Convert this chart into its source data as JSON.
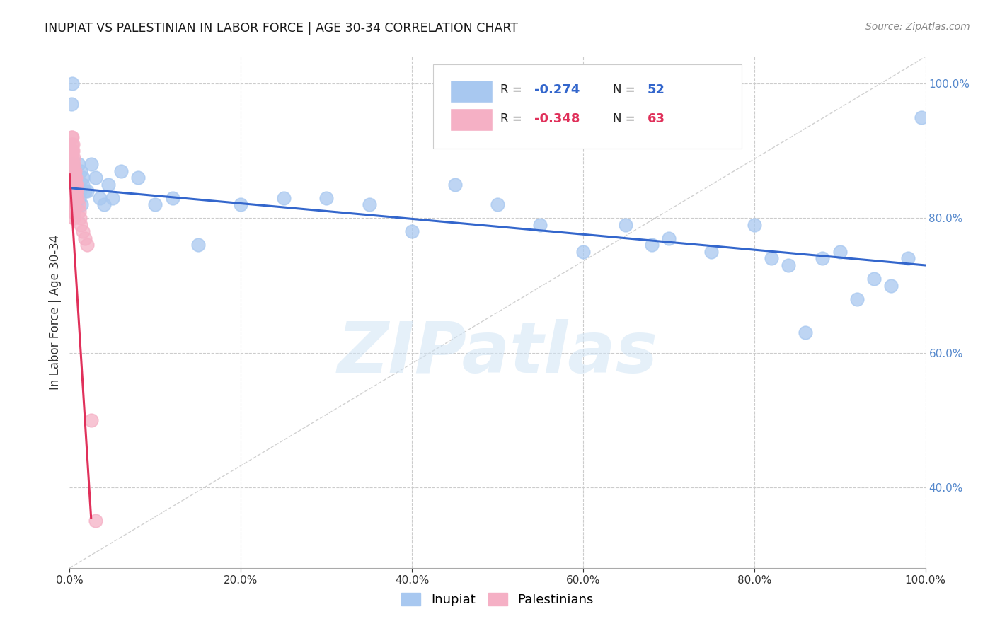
{
  "title": "INUPIAT VS PALESTINIAN IN LABOR FORCE | AGE 30-34 CORRELATION CHART",
  "source": "Source: ZipAtlas.com",
  "ylabel": "In Labor Force | Age 30-34",
  "watermark": "ZIPatlas",
  "legend_label_blue": "Inupiat",
  "legend_label_pink": "Palestinians",
  "blue_color": "#a8c8f0",
  "pink_color": "#f5b0c5",
  "blue_line_color": "#3366cc",
  "pink_line_color": "#e0305a",
  "diagonal_color": "#cccccc",
  "background_color": "#ffffff",
  "grid_color": "#cccccc",
  "right_label_color": "#5588cc",
  "inupiat_x": [
    0.002,
    0.003,
    0.004,
    0.005,
    0.005,
    0.006,
    0.007,
    0.008,
    0.01,
    0.011,
    0.012,
    0.013,
    0.014,
    0.015,
    0.015,
    0.018,
    0.02,
    0.025,
    0.03,
    0.035,
    0.04,
    0.045,
    0.05,
    0.06,
    0.08,
    0.1,
    0.12,
    0.15,
    0.2,
    0.25,
    0.3,
    0.35,
    0.4,
    0.45,
    0.5,
    0.55,
    0.6,
    0.65,
    0.68,
    0.7,
    0.75,
    0.8,
    0.82,
    0.84,
    0.86,
    0.88,
    0.9,
    0.92,
    0.94,
    0.96,
    0.98,
    0.995
  ],
  "inupiat_y": [
    0.97,
    1.0,
    0.88,
    0.85,
    0.87,
    0.83,
    0.82,
    0.84,
    0.88,
    0.83,
    0.84,
    0.87,
    0.82,
    0.86,
    0.85,
    0.84,
    0.84,
    0.88,
    0.86,
    0.83,
    0.82,
    0.85,
    0.83,
    0.87,
    0.86,
    0.82,
    0.83,
    0.76,
    0.82,
    0.83,
    0.83,
    0.82,
    0.78,
    0.85,
    0.82,
    0.79,
    0.75,
    0.79,
    0.76,
    0.77,
    0.75,
    0.79,
    0.74,
    0.73,
    0.63,
    0.74,
    0.75,
    0.68,
    0.71,
    0.7,
    0.74,
    0.95
  ],
  "palest_x": [
    0.001,
    0.001,
    0.001,
    0.001,
    0.002,
    0.002,
    0.002,
    0.002,
    0.002,
    0.002,
    0.002,
    0.002,
    0.003,
    0.003,
    0.003,
    0.003,
    0.003,
    0.003,
    0.003,
    0.003,
    0.003,
    0.003,
    0.004,
    0.004,
    0.004,
    0.004,
    0.004,
    0.004,
    0.004,
    0.004,
    0.004,
    0.004,
    0.005,
    0.005,
    0.005,
    0.005,
    0.005,
    0.005,
    0.005,
    0.005,
    0.005,
    0.005,
    0.006,
    0.006,
    0.006,
    0.006,
    0.006,
    0.007,
    0.007,
    0.007,
    0.007,
    0.008,
    0.008,
    0.009,
    0.01,
    0.011,
    0.012,
    0.013,
    0.015,
    0.018,
    0.02,
    0.025,
    0.03
  ],
  "palest_y": [
    0.88,
    0.86,
    0.84,
    0.82,
    0.92,
    0.91,
    0.9,
    0.89,
    0.88,
    0.87,
    0.86,
    0.85,
    0.92,
    0.9,
    0.89,
    0.88,
    0.87,
    0.86,
    0.85,
    0.84,
    0.83,
    0.82,
    0.91,
    0.9,
    0.88,
    0.87,
    0.86,
    0.85,
    0.84,
    0.83,
    0.82,
    0.81,
    0.89,
    0.88,
    0.87,
    0.86,
    0.85,
    0.84,
    0.83,
    0.82,
    0.81,
    0.8,
    0.87,
    0.86,
    0.85,
    0.84,
    0.83,
    0.86,
    0.85,
    0.84,
    0.83,
    0.85,
    0.84,
    0.83,
    0.82,
    0.81,
    0.8,
    0.79,
    0.78,
    0.77,
    0.76,
    0.5,
    0.35
  ],
  "blue_line_x0": 0.0,
  "blue_line_y0": 0.845,
  "blue_line_x1": 1.0,
  "blue_line_y1": 0.73,
  "pink_line_x0": 0.0,
  "pink_line_y0": 0.865,
  "pink_line_x1": 0.025,
  "pink_line_y1": 0.355,
  "xlim": [
    0.0,
    1.0
  ],
  "ylim": [
    0.28,
    1.04
  ],
  "xgrid": [
    0.2,
    0.4,
    0.6,
    0.8,
    1.0
  ],
  "ygrid": [
    0.4,
    0.6,
    0.8,
    1.0
  ]
}
